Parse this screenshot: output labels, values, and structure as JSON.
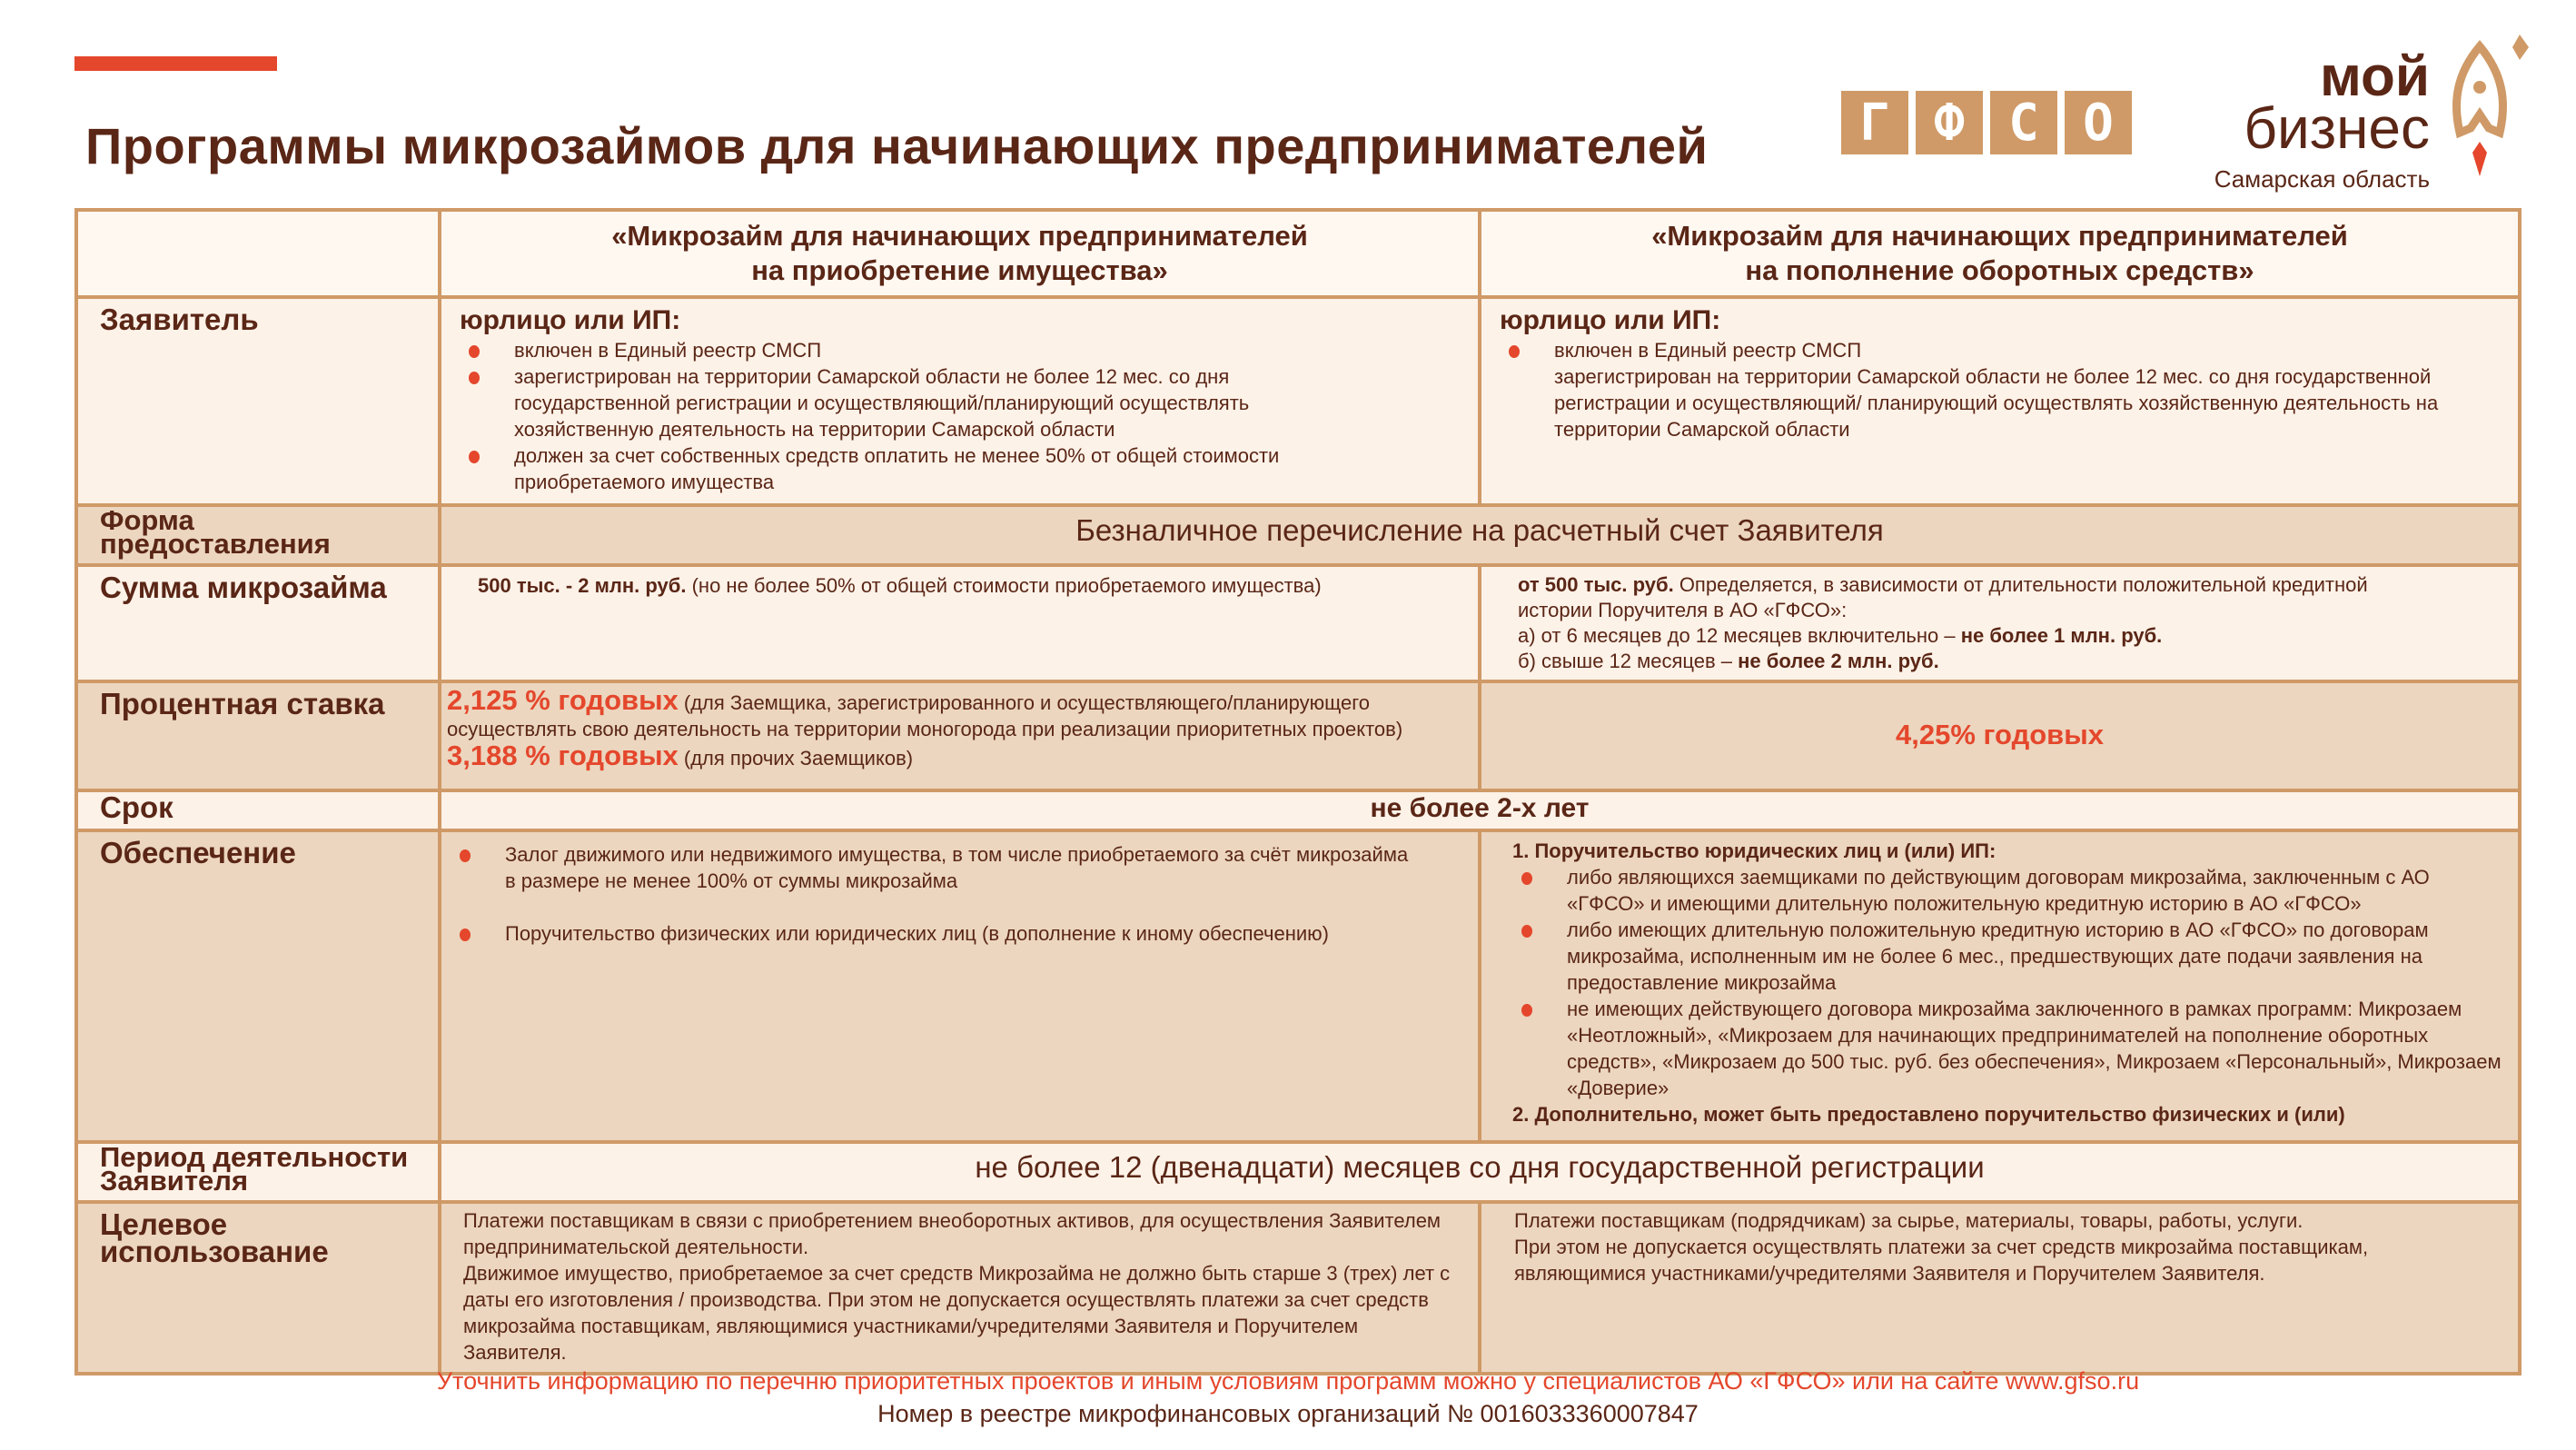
{
  "title": "Программы микрозаймов для начинающих предпринимателей",
  "logos": {
    "gfso": [
      "Г",
      "Ф",
      "С",
      "О"
    ],
    "moi": "мой",
    "biznes": "бизнес",
    "region": "Самарская область",
    "colors": {
      "tan": "#cf9a67",
      "red": "#e4472c",
      "brown": "#5a2616"
    }
  },
  "columns": [
    "«Микрозайм для начинающих предпринимателей на приобретение имущества»",
    "«Микрозайм для начинающих предпринимателей на пополнение оборотных средств»"
  ],
  "rows": {
    "applicant": {
      "label": "Заявитель",
      "c1": {
        "head": "юрлицо или ИП:",
        "items": [
          "включен в Единый реестр СМСП",
          "зарегистрирован на территории Самарской области не более 12 мес. со дня государственной регистрации и осуществляющий/планирующий осуществлять хозяйственную деятельность на территории Самарской области",
          "должен за счет собственных средств оплатить не менее 50% от общей стоимости приобретаемого имущества"
        ]
      },
      "c2": {
        "head": "юрлицо или ИП:",
        "items": [
          "включен в Единый реестр СМСП"
        ],
        "extra": "зарегистрирован на территории Самарской области не более 12 мес. со дня государственной регистрации и осуществляющий/ планирующий осуществлять хозяйственную деятельность на территории Самарской области"
      }
    },
    "form": {
      "label": "Форма предоставления",
      "value": "Безналичное перечисление на расчетный счет Заявителя"
    },
    "amount": {
      "label": "Сумма микрозайма",
      "c1_bold": "500 тыс. - 2 млн. руб.",
      "c1_text": " (но не более 50% от общей стоимости приобретаемого имущества)",
      "c2_bold": "от 500 тыс. руб.",
      "c2_text": " Определяется, в зависимости от длительности положительной кредитной истории Поручителя в АО «ГФСО»:",
      "c2_a": "а) от 6 месяцев до 12 месяцев включительно – ",
      "c2_a_bold": "не более 1 млн. руб.",
      "c2_b": "б) свыше 12 месяцев – ",
      "c2_b_bold": "не более 2 млн. руб."
    },
    "rate": {
      "label": "Процентная ставка",
      "r1": "2,125 % годовых",
      "r1_text": " (для Заемщика, зарегистрированного и осуществляющего/планирующего осуществлять свою деятельность на территории моногорода при реализации приоритетных проектов)",
      "r2": "3,188 % годовых",
      "r2_text": " (для прочих Заемщиков)",
      "c2": "4,25% годовых"
    },
    "term": {
      "label": "Срок",
      "value": "не более 2-х лет"
    },
    "security": {
      "label": "Обеспечение",
      "c1": [
        "Залог движимого или недвижимого имущества, в том числе приобретаемого за счёт микрозайма в размере не менее 100% от суммы микрозайма",
        "Поручительство физических или юридических лиц (в дополнение к иному обеспечению)"
      ],
      "c2_head": "1. Поручительство юридических лиц и (или) ИП:",
      "c2": [
        "либо являющихся заемщиками по действующим договорам микрозайма, заключенным с АО «ГФСО» и имеющими длительную положительную кредитную историю в АО «ГФСО»",
        "либо имеющих длительную положительную кредитную историю в АО «ГФСО» по договорам микрозайма, исполненным им не более 6 мес., предшествующих дате подачи заявления на предоставление микрозайма",
        "не имеющих действующего договора микрозайма заключенного в рамках программ: Микрозаем «Неотложный», «Микрозаем для начинающих предпринимателей на пополнение оборотных средств», «Микрозаем до 500 тыс. руб. без обеспечения», Микрозаем «Персональный», Микрозаем «Доверие»"
      ],
      "c2_foot": "2. Дополнительно, может быть предоставлено поручительство физических и (или)"
    },
    "period": {
      "label": "Период деятельности Заявителя",
      "value": "не более 12 (двенадцати) месяцев со дня государственной регистрации"
    },
    "purpose": {
      "label": "Целевое использование",
      "c1": "Платежи поставщикам в связи с приобретением внеоборотных активов, для осуществления Заявителем предпринимательской деятельности.",
      "c1b": "Движимое имущество, приобретаемое за счет средств Микрозайма не должно быть старше 3 (трех) лет с даты его изготовления / производства. При этом не допускается осуществлять платежи за счет средств микрозайма поставщикам, являющимися участниками/учредителями Заявителя и Поручителем Заявителя.",
      "c2": "Платежи поставщикам (подрядчикам) за сырье, материалы, товары, работы, услуги.",
      "c2b": "При этом не допускается осуществлять платежи за счет средств микрозайма поставщикам, являющимися участниками/учредителями Заявителя и Поручителем Заявителя."
    }
  },
  "footer": {
    "note": "Уточнить информацию по перечню приоритетных проектов и иным условиям программ можно у специалистов АО «ГФСО» или на сайте www.gfso.ru",
    "registry": "Номер в реестре микрофинансовых организаций № 0016033360007847"
  }
}
